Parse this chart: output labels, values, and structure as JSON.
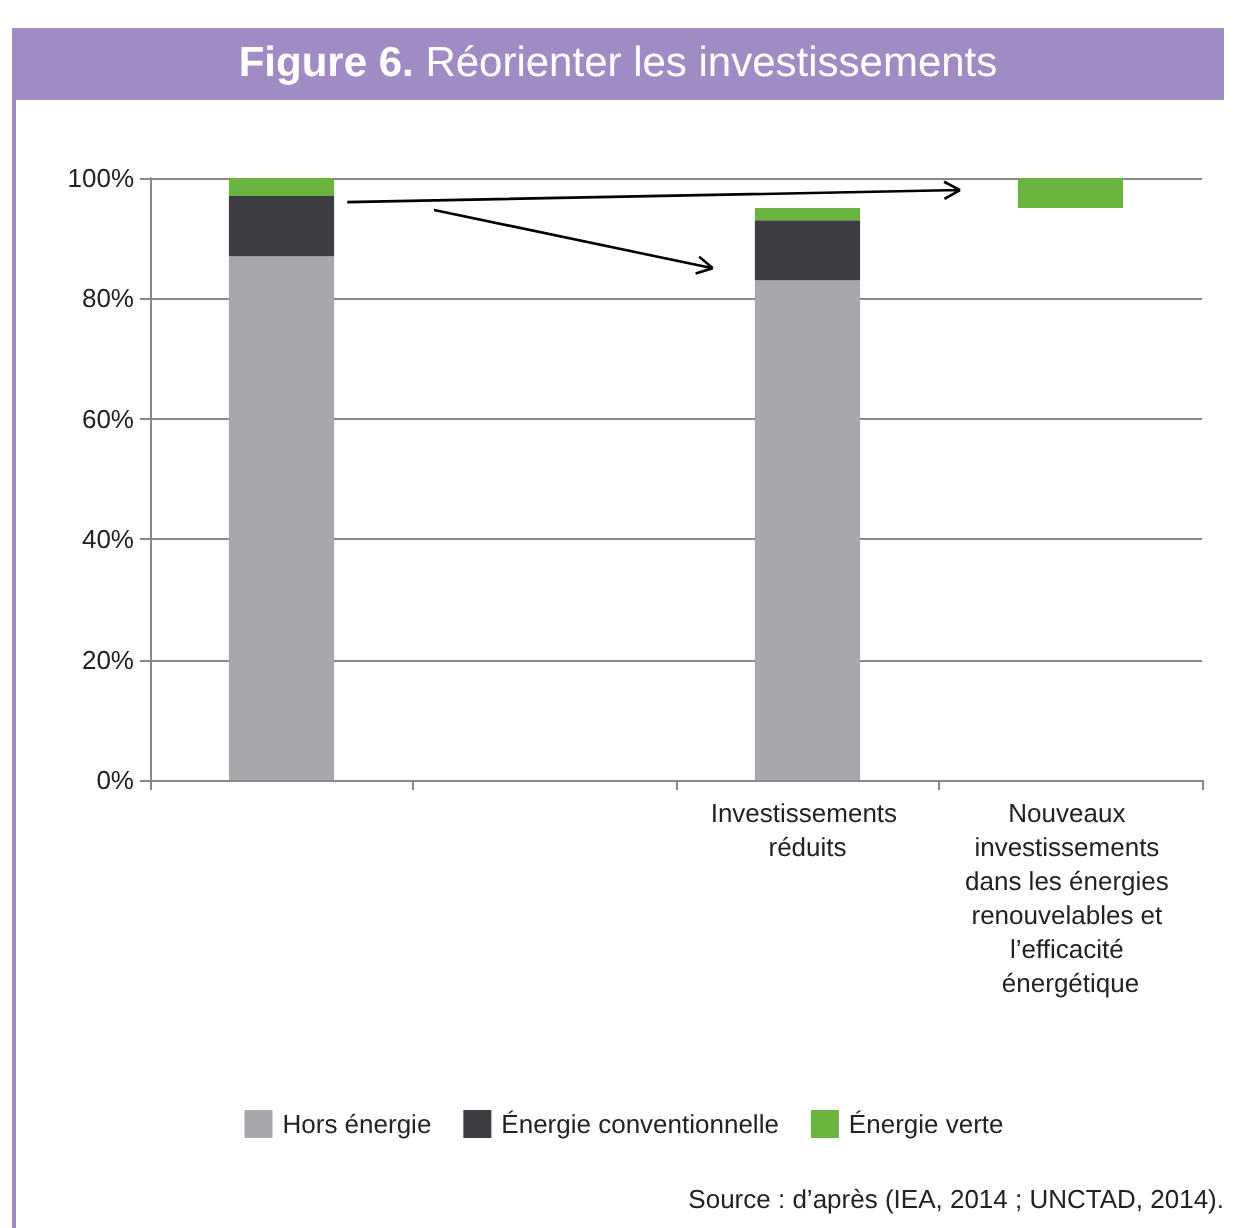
{
  "chart_data": {
    "type": "bar",
    "title": "Figure 6. Réorienter les investissements",
    "categories": [
      null,
      null,
      "Investissements réduits",
      "Nouveaux investissements dans les énergies renouvelables et l’efficacité énergétique"
    ],
    "series": [
      {
        "name": "Hors énergie",
        "color": "#a7a8ab",
        "values": [
          87,
          null,
          83,
          null
        ]
      },
      {
        "name": "Énergie conventionnelle",
        "color": "#3b3d40",
        "values": [
          10,
          null,
          10,
          null
        ]
      },
      {
        "name": "Énergie verte",
        "color": "#6ab33f",
        "values": [
          3,
          null,
          2,
          5
        ],
        "base": [
          null,
          null,
          null,
          95
        ]
      }
    ],
    "stacked": true,
    "ylim": [
      0,
      100
    ],
    "yticks": [
      {
        "value": 0,
        "label": "0%"
      },
      {
        "value": 20,
        "label": "20%"
      },
      {
        "value": 40,
        "label": "40%"
      },
      {
        "value": 60,
        "label": "60%"
      },
      {
        "value": 80,
        "label": "80%"
      },
      {
        "value": 100,
        "label": "100%"
      }
    ],
    "grid": "y",
    "legend": "bottom",
    "annotations": [
      "Source : d’après (IEA, 2014 ; UNCTAD, 2014)."
    ]
  }
}
